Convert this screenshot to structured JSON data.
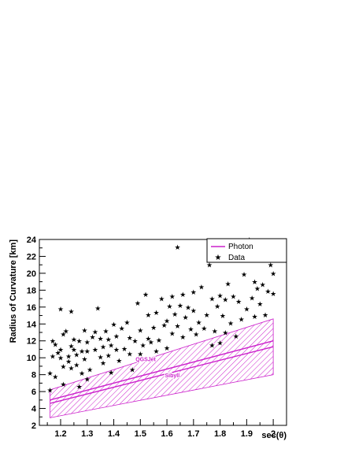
{
  "chart_data": {
    "type": "scatter",
    "xlabel": "sec(θ)",
    "ylabel": "Radius of Curvature [km]",
    "xlim": [
      1.12,
      2.05
    ],
    "ylim": [
      2,
      24
    ],
    "x_ticks": [
      1.2,
      1.3,
      1.4,
      1.5,
      1.6,
      1.7,
      1.8,
      1.9,
      2.0
    ],
    "x_tick_labels": [
      "1.2",
      "1.3",
      "1.4",
      "1.5",
      "1.6",
      "1.7",
      "1.8",
      "1.9",
      "2"
    ],
    "y_ticks": [
      2,
      4,
      6,
      8,
      10,
      12,
      14,
      16,
      18,
      20,
      22,
      24
    ],
    "y_tick_labels": [
      "2",
      "4",
      "6",
      "8",
      "10",
      "12",
      "14",
      "16",
      "18",
      "20",
      "22",
      "24"
    ],
    "legend": {
      "position": "top-right",
      "entries": [
        {
          "label": "Photon",
          "marker": "line",
          "color": "#cc22cc"
        },
        {
          "label": "Data",
          "marker": "star",
          "color": "#000000"
        }
      ]
    },
    "colors": {
      "photon": "#cc22cc",
      "data": "#000000"
    },
    "annotations": [
      {
        "text": "QGSJet",
        "x": 1.52,
        "y": 9.6
      },
      {
        "text": "Sibyll",
        "x": 1.62,
        "y": 7.7
      }
    ],
    "photon_band": {
      "x": [
        1.16,
        2.0
      ],
      "upper": [
        6.2,
        14.6
      ],
      "lower": [
        2.9,
        8.0
      ]
    },
    "photon_curves": [
      {
        "model": "QGSJet",
        "x": [
          1.16,
          2.0
        ],
        "y": [
          5.0,
          12.0
        ]
      },
      {
        "model": "Sibyll",
        "x": [
          1.16,
          2.0
        ],
        "y": [
          4.6,
          11.3
        ]
      }
    ],
    "data_points": [
      [
        1.16,
        8.2
      ],
      [
        1.16,
        6.2
      ],
      [
        1.17,
        12.0
      ],
      [
        1.17,
        10.2
      ],
      [
        1.18,
        11.6
      ],
      [
        1.18,
        7.8
      ],
      [
        1.19,
        10.6
      ],
      [
        1.2,
        15.8
      ],
      [
        1.2,
        11.0
      ],
      [
        1.2,
        10.0
      ],
      [
        1.21,
        12.8
      ],
      [
        1.21,
        9.0
      ],
      [
        1.21,
        6.9
      ],
      [
        1.22,
        13.2
      ],
      [
        1.23,
        10.2
      ],
      [
        1.23,
        9.6
      ],
      [
        1.24,
        11.4
      ],
      [
        1.24,
        8.8
      ],
      [
        1.24,
        15.5
      ],
      [
        1.25,
        12.2
      ],
      [
        1.25,
        11.0
      ],
      [
        1.26,
        10.4
      ],
      [
        1.26,
        9.2
      ],
      [
        1.27,
        12.0
      ],
      [
        1.27,
        6.6
      ],
      [
        1.28,
        10.8
      ],
      [
        1.28,
        8.2
      ],
      [
        1.29,
        9.9
      ],
      [
        1.29,
        13.3
      ],
      [
        1.3,
        11.9
      ],
      [
        1.3,
        10.8
      ],
      [
        1.3,
        7.5
      ],
      [
        1.31,
        8.6
      ],
      [
        1.32,
        12.5
      ],
      [
        1.33,
        11.0
      ],
      [
        1.33,
        13.1
      ],
      [
        1.34,
        15.9
      ],
      [
        1.35,
        12.3
      ],
      [
        1.35,
        10.1
      ],
      [
        1.36,
        11.3
      ],
      [
        1.36,
        9.4
      ],
      [
        1.37,
        13.2
      ],
      [
        1.38,
        12.2
      ],
      [
        1.38,
        10.3
      ],
      [
        1.39,
        11.5
      ],
      [
        1.39,
        8.3
      ],
      [
        1.4,
        14.0
      ],
      [
        1.41,
        11.0
      ],
      [
        1.41,
        12.6
      ],
      [
        1.42,
        9.7
      ],
      [
        1.43,
        13.5
      ],
      [
        1.44,
        11.1
      ],
      [
        1.45,
        14.2
      ],
      [
        1.46,
        10.5
      ],
      [
        1.46,
        12.4
      ],
      [
        1.47,
        8.6
      ],
      [
        1.48,
        12.0
      ],
      [
        1.49,
        16.5
      ],
      [
        1.5,
        10.5
      ],
      [
        1.5,
        13.3
      ],
      [
        1.51,
        11.5
      ],
      [
        1.52,
        17.5
      ],
      [
        1.53,
        15.1
      ],
      [
        1.53,
        12.3
      ],
      [
        1.54,
        11.9
      ],
      [
        1.55,
        13.6
      ],
      [
        1.56,
        15.4
      ],
      [
        1.56,
        10.8
      ],
      [
        1.57,
        12.1
      ],
      [
        1.58,
        17.0
      ],
      [
        1.59,
        13.9
      ],
      [
        1.6,
        14.4
      ],
      [
        1.6,
        11.2
      ],
      [
        1.61,
        16.1
      ],
      [
        1.62,
        17.3
      ],
      [
        1.62,
        12.9
      ],
      [
        1.63,
        15.2
      ],
      [
        1.64,
        23.1
      ],
      [
        1.64,
        13.8
      ],
      [
        1.65,
        16.2
      ],
      [
        1.66,
        17.5
      ],
      [
        1.66,
        12.5
      ],
      [
        1.67,
        14.8
      ],
      [
        1.68,
        16.0
      ],
      [
        1.69,
        13.4
      ],
      [
        1.7,
        15.6
      ],
      [
        1.7,
        17.8
      ],
      [
        1.71,
        12.8
      ],
      [
        1.72,
        14.2
      ],
      [
        1.73,
        18.4
      ],
      [
        1.74,
        13.5
      ],
      [
        1.75,
        15.1
      ],
      [
        1.76,
        21.0
      ],
      [
        1.77,
        17.0
      ],
      [
        1.77,
        11.5
      ],
      [
        1.78,
        13.2
      ],
      [
        1.79,
        16.1
      ],
      [
        1.8,
        17.4
      ],
      [
        1.8,
        11.8
      ],
      [
        1.81,
        15.0
      ],
      [
        1.82,
        16.9
      ],
      [
        1.82,
        13.0
      ],
      [
        1.83,
        18.8
      ],
      [
        1.84,
        14.1
      ],
      [
        1.85,
        17.3
      ],
      [
        1.86,
        12.6
      ],
      [
        1.87,
        16.7
      ],
      [
        1.88,
        14.6
      ],
      [
        1.89,
        19.9
      ],
      [
        1.9,
        15.8
      ],
      [
        1.91,
        24.0
      ],
      [
        1.92,
        17.1
      ],
      [
        1.93,
        19.0
      ],
      [
        1.93,
        14.9
      ],
      [
        1.94,
        18.2
      ],
      [
        1.95,
        16.4
      ],
      [
        1.96,
        18.7
      ],
      [
        1.97,
        15.1
      ],
      [
        1.98,
        17.9
      ],
      [
        1.99,
        21.0
      ],
      [
        2.0,
        20.0
      ],
      [
        2.0,
        17.6
      ]
    ]
  }
}
